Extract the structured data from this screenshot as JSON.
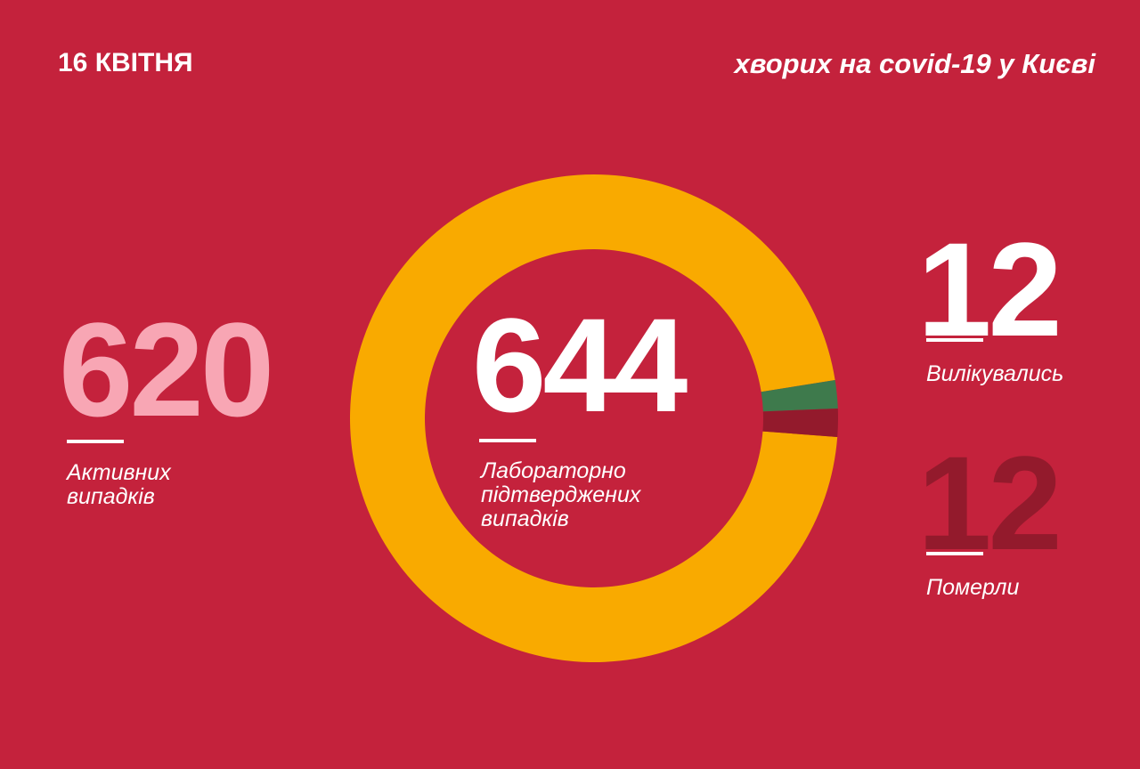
{
  "chart_data": {
    "type": "pie",
    "donut": true,
    "title": "16 КВІТНЯ",
    "subtitle": "хворих на covid-19 у Києві",
    "total": 644,
    "total_label": "Лабораторно підтверджених випадків",
    "categories": [
      "Активних випадків",
      "Вилікувались",
      "Померли"
    ],
    "values": [
      620,
      12,
      12
    ],
    "colors": [
      "#f9aa00",
      "#3e7a4c",
      "#931a2c"
    ],
    "label_colors": [
      "#f8a6b4",
      "#ffffff",
      "#931a2c"
    ]
  }
}
